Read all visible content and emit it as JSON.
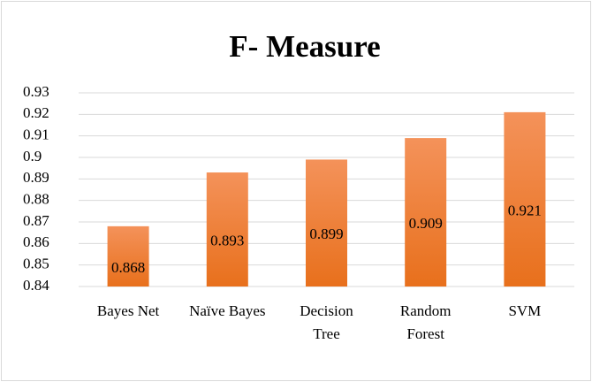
{
  "chart_data": {
    "type": "bar",
    "title": "F- Measure",
    "categories": [
      "Bayes Net",
      "Naïve Bayes",
      "Decision Tree",
      "Random Forest",
      "SVM"
    ],
    "values": [
      0.868,
      0.893,
      0.899,
      0.909,
      0.921
    ],
    "color": "#ed7d31",
    "ylim": [
      0.84,
      0.93
    ],
    "yticks": [
      0.84,
      0.85,
      0.86,
      0.87,
      0.88,
      0.89,
      0.9,
      0.91,
      0.92,
      0.93
    ],
    "grid": true
  }
}
